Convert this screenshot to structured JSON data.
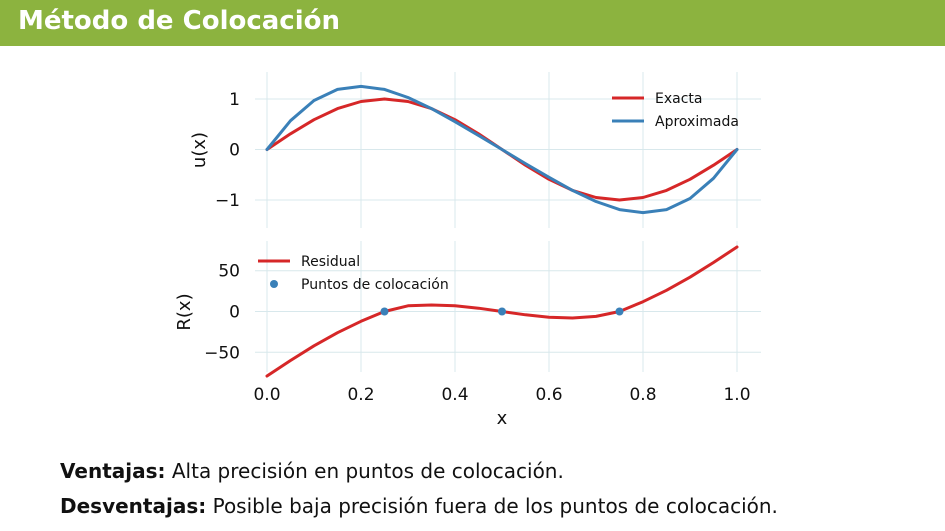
{
  "header": {
    "title": "Método de Colocación"
  },
  "colors": {
    "title_bar": "#8cb33f",
    "exact": "#d62728",
    "approx": "#3a80b8",
    "residual": "#d62728",
    "points": "#3a80b8",
    "grid": "#d8e8ec"
  },
  "chart_data": [
    {
      "type": "line",
      "xlim": [
        0,
        1
      ],
      "ylim": [
        -1.35,
        1.35
      ],
      "ylabel": "u(x)",
      "y_ticks": [
        1,
        0,
        -1
      ],
      "y_tick_labels": [
        "1",
        "0",
        "−1"
      ],
      "x_ticks": [
        0.0,
        0.2,
        0.4,
        0.6,
        0.8,
        1.0
      ],
      "grid": true,
      "legend": "top-right",
      "series": [
        {
          "name": "Exacta",
          "color": "#d62728",
          "x": [
            0,
            0.05,
            0.1,
            0.15,
            0.2,
            0.25,
            0.3,
            0.35,
            0.4,
            0.45,
            0.5,
            0.55,
            0.6,
            0.65,
            0.7,
            0.75,
            0.8,
            0.85,
            0.9,
            0.95,
            1.0
          ],
          "y": [
            0,
            0.31,
            0.59,
            0.81,
            0.95,
            1.0,
            0.95,
            0.81,
            0.59,
            0.31,
            0,
            -0.31,
            -0.59,
            -0.81,
            -0.95,
            -1.0,
            -0.95,
            -0.81,
            -0.59,
            -0.31,
            0
          ]
        },
        {
          "name": "Aproximada",
          "color": "#3a80b8",
          "x": [
            0,
            0.05,
            0.1,
            0.15,
            0.2,
            0.25,
            0.3,
            0.35,
            0.4,
            0.45,
            0.5,
            0.55,
            0.6,
            0.65,
            0.7,
            0.75,
            0.8,
            0.85,
            0.9,
            0.95,
            1.0
          ],
          "y": [
            0,
            0.57,
            0.97,
            1.19,
            1.25,
            1.19,
            1.03,
            0.81,
            0.55,
            0.28,
            0,
            -0.28,
            -0.55,
            -0.81,
            -1.03,
            -1.19,
            -1.25,
            -1.19,
            -0.97,
            -0.57,
            0
          ]
        }
      ]
    },
    {
      "type": "line",
      "xlim": [
        0,
        1
      ],
      "ylim": [
        -80,
        80
      ],
      "xlabel": "x",
      "ylabel": "R(x)",
      "y_ticks": [
        50,
        0,
        -50
      ],
      "y_tick_labels": [
        "50",
        "0",
        "−50"
      ],
      "x_ticks": [
        0.0,
        0.2,
        0.4,
        0.6,
        0.8,
        1.0
      ],
      "x_tick_labels": [
        "0.0",
        "0.2",
        "0.4",
        "0.6",
        "0.8",
        "1.0"
      ],
      "grid": true,
      "legend": "top-left",
      "series": [
        {
          "name": "Residual",
          "color": "#d62728",
          "x": [
            0,
            0.05,
            0.1,
            0.15,
            0.2,
            0.25,
            0.3,
            0.35,
            0.4,
            0.45,
            0.5,
            0.55,
            0.6,
            0.65,
            0.7,
            0.75,
            0.8,
            0.85,
            0.9,
            0.95,
            1.0
          ],
          "y": [
            -79,
            -60,
            -42,
            -26,
            -12,
            0,
            7,
            8,
            7,
            4,
            0,
            -4,
            -7,
            -8,
            -6,
            0,
            12,
            26,
            42,
            60,
            79
          ]
        }
      ],
      "points": {
        "name": "Puntos de colocación",
        "color": "#3a80b8",
        "x": [
          0.25,
          0.5,
          0.75
        ],
        "y": [
          0,
          0,
          0
        ]
      }
    }
  ],
  "bullets": [
    {
      "label": "Ventajas:",
      "text": "Alta precisión en puntos de colocación."
    },
    {
      "label": "Desventajas:",
      "text": "Posible baja precisión fuera de los puntos de colocación."
    }
  ]
}
